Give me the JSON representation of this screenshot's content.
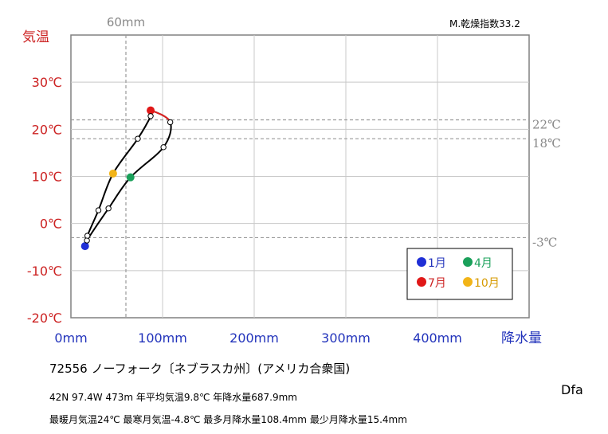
{
  "chart_data": {
    "type": "line",
    "title": "",
    "xlabel": "降水量",
    "ylabel": "気温",
    "xlim": [
      0,
      500
    ],
    "ylim": [
      -20,
      40
    ],
    "x_ticks": [
      0,
      100,
      200,
      300,
      400
    ],
    "x_tick_labels": [
      "0mm",
      "100mm",
      "200mm",
      "300mm",
      "400mm"
    ],
    "y_ticks": [
      -20,
      -10,
      0,
      10,
      20,
      30
    ],
    "y_tick_labels": [
      "-20℃",
      "-10℃",
      "0℃",
      "10℃",
      "20℃",
      "30℃"
    ],
    "grid": true,
    "ref_vertical": {
      "x": 60,
      "label": "60mm"
    },
    "ref_horizontal": [
      {
        "y": 22,
        "label": "22℃"
      },
      {
        "y": 18,
        "label": "18℃"
      },
      {
        "y": -3,
        "label": "-3℃"
      }
    ],
    "dryness_index": "M.乾燥指数33.2",
    "months": [
      {
        "month": 1,
        "x": 15.4,
        "y": -4.8
      },
      {
        "month": 2,
        "x": 17.5,
        "y": -3.6
      },
      {
        "month": 3,
        "x": 41,
        "y": 3.2
      },
      {
        "month": 4,
        "x": 65,
        "y": 9.8
      },
      {
        "month": 5,
        "x": 101,
        "y": 16.2
      },
      {
        "month": 6,
        "x": 108.4,
        "y": 21.5
      },
      {
        "month": 7,
        "x": 87,
        "y": 24.0
      },
      {
        "month": 8,
        "x": 87,
        "y": 22.8
      },
      {
        "month": 9,
        "x": 73,
        "y": 18.0
      },
      {
        "month": 10,
        "x": 46,
        "y": 10.6
      },
      {
        "month": 11,
        "x": 30,
        "y": 2.8
      },
      {
        "month": 12,
        "x": 18,
        "y": -2.6
      }
    ],
    "hot_segment_color": "#e02020",
    "line_color": "#000000",
    "legend": {
      "placement": "bottom-right",
      "entries": [
        {
          "label": "1月",
          "month": 1,
          "color": "#1f2fd6"
        },
        {
          "label": "4月",
          "month": 4,
          "color": "#1aa05a"
        },
        {
          "label": "7月",
          "month": 7,
          "color": "#e01818"
        },
        {
          "label": "10月",
          "month": 10,
          "color": "#f2b418"
        }
      ]
    }
  },
  "station": "72556 ノーフォーク〔ネブラスカ州〕(アメリカ合衆国)",
  "info_line1": "42N 97.4W 473m 年平均気温9.8℃ 年降水量687.9mm",
  "info_line2": "最暖月気温24℃ 最寒月気温-4.8℃ 最多月降水量108.4mm 最少月降水量15.4mm",
  "climate_code": "Dfa"
}
